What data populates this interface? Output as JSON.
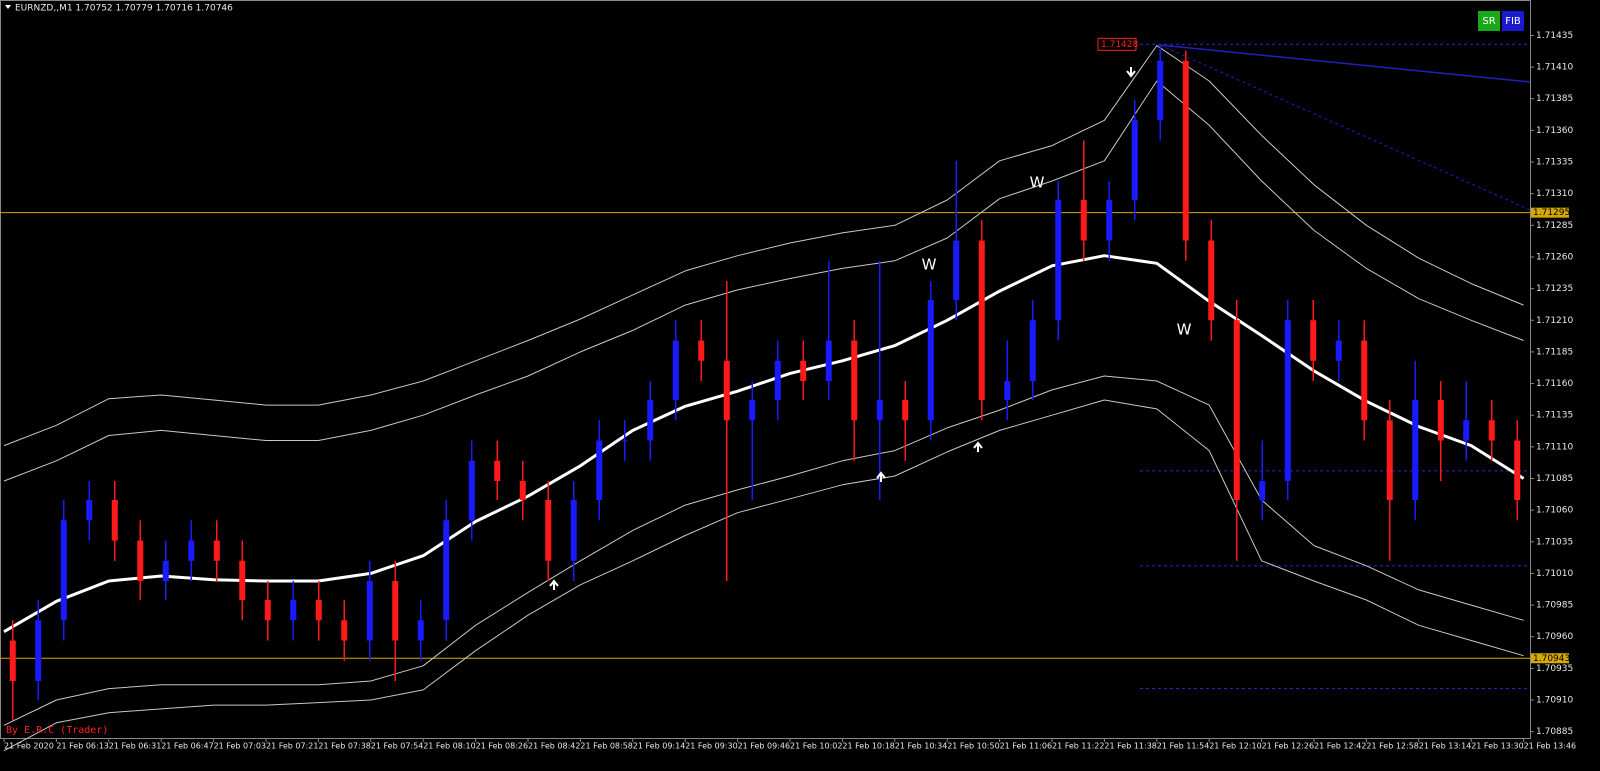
{
  "chart_data": {
    "type": "candlestick",
    "title": "EURNZD,,M1 1.70752 1.70779 1.70716 1.70746",
    "watermark": "By E.R.C (Trader)",
    "buttons": [
      "SR",
      "FIB"
    ],
    "annotations": [
      "W",
      "W",
      "W"
    ],
    "up_color": "#1a1aff",
    "down_color": "#ff1a1a",
    "ylim": [
      1.7088,
      1.71463
    ],
    "yticks": [
      1.71435,
      {
        "value": 1.7141,
        "label": "1.71410"
      },
      1.71385,
      {
        "value": 1.7136,
        "label": "1.71360"
      },
      1.71335,
      {
        "value": 1.7131,
        "label": "1.71310"
      },
      1.71285,
      {
        "value": 1.7126,
        "label": "1.71260"
      },
      1.71235,
      {
        "value": 1.7121,
        "label": "1.71210"
      },
      1.71185,
      {
        "value": 1.7116,
        "label": "1.71160"
      },
      1.71135,
      {
        "value": 1.7111,
        "label": "1.71110"
      },
      1.71085,
      {
        "value": 1.7106,
        "label": "1.71060"
      },
      1.71035,
      {
        "value": 1.7101,
        "label": "1.71010"
      },
      1.70985,
      {
        "value": 1.7096,
        "label": "1.70960"
      },
      1.70935,
      {
        "value": 1.7091,
        "label": "1.70910"
      },
      1.70885
    ],
    "categories": [
      "21 Feb 2020",
      "21 Feb 06:13",
      "21 Feb 06:31",
      "21 Feb 06:47",
      "21 Feb 07:03",
      "21 Feb 07:21",
      "21 Feb 07:38",
      "21 Feb 07:54",
      "21 Feb 08:10",
      "21 Feb 08:26",
      "21 Feb 08:42",
      "21 Feb 08:58",
      "21 Feb 09:14",
      "21 Feb 09:30",
      "21 Feb 09:46",
      "21 Feb 10:02",
      "21 Feb 10:18",
      "21 Feb 10:34",
      "21 Feb 10:50",
      "21 Feb 11:06",
      "21 Feb 11:22",
      "21 Feb 11:38",
      "21 Feb 11:54",
      "21 Feb 12:10",
      "21 Feb 12:26",
      "21 Feb 12:42",
      "21 Feb 12:58",
      "21 Feb 13:14",
      "21 Feb 13:30",
      "21 Feb 13:46"
    ],
    "open": [
      1.70957,
      1.70925,
      1.70973,
      1.71052,
      1.71068,
      1.71036,
      1.71004,
      1.7102,
      1.71036,
      1.7102,
      1.70989,
      1.70973,
      1.70989,
      1.70973,
      1.70957,
      1.71004,
      1.70957,
      1.70973,
      1.71052,
      1.71099,
      1.71083,
      1.71068,
      1.7102,
      1.71068,
      1.71115,
      1.71115,
      1.71147,
      1.71194,
      1.71178,
      1.71131,
      1.71147,
      1.71178,
      1.71162,
      1.71194,
      1.71131,
      1.71147,
      1.71131,
      1.71226,
      1.71273,
      1.71147,
      1.71162,
      1.7121,
      1.71305,
      1.71273,
      1.71305,
      1.71368,
      1.71415,
      1.71273,
      1.7121,
      1.71068,
      1.71083,
      1.7121,
      1.71178,
      1.71194,
      1.71131,
      1.71068,
      1.71147,
      1.71115,
      1.71131,
      1.71115
    ],
    "high": [
      1.70973,
      1.70989,
      1.71068,
      1.71083,
      1.71083,
      1.71052,
      1.71036,
      1.71052,
      1.71052,
      1.71036,
      1.71004,
      1.71004,
      1.71004,
      1.70989,
      1.7102,
      1.7102,
      1.70989,
      1.71068,
      1.71115,
      1.71115,
      1.71099,
      1.71083,
      1.71083,
      1.71131,
      1.71131,
      1.71162,
      1.7121,
      1.7121,
      1.71241,
      1.71162,
      1.71194,
      1.71194,
      1.71257,
      1.7121,
      1.71257,
      1.71162,
      1.71241,
      1.71336,
      1.71289,
      1.71194,
      1.71226,
      1.7132,
      1.71352,
      1.7132,
      1.71384,
      1.71428,
      1.71423,
      1.71289,
      1.71226,
      1.71115,
      1.71226,
      1.71226,
      1.7121,
      1.7121,
      1.71147,
      1.71178,
      1.71162,
      1.71162,
      1.71147,
      1.71131
    ],
    "low": [
      1.70894,
      1.7091,
      1.70957,
      1.71036,
      1.7102,
      1.70989,
      1.70989,
      1.71004,
      1.71004,
      1.70973,
      1.70957,
      1.70957,
      1.70957,
      1.70941,
      1.70941,
      1.70925,
      1.70941,
      1.70957,
      1.71036,
      1.71068,
      1.71052,
      1.71004,
      1.71004,
      1.71052,
      1.71099,
      1.71099,
      1.71131,
      1.71162,
      1.71004,
      1.71068,
      1.71131,
      1.71147,
      1.71147,
      1.71099,
      1.71068,
      1.71099,
      1.71115,
      1.7121,
      1.71131,
      1.71131,
      1.71147,
      1.71194,
      1.71257,
      1.71257,
      1.71289,
      1.71352,
      1.71257,
      1.71194,
      1.7102,
      1.71052,
      1.71068,
      1.71162,
      1.71162,
      1.71115,
      1.7102,
      1.71052,
      1.71083,
      1.71099,
      1.71099,
      1.71052
    ],
    "close": [
      1.70925,
      1.70973,
      1.71052,
      1.71068,
      1.71036,
      1.71004,
      1.7102,
      1.71036,
      1.7102,
      1.70989,
      1.70973,
      1.70989,
      1.70973,
      1.70957,
      1.71004,
      1.70957,
      1.70973,
      1.71052,
      1.71099,
      1.71083,
      1.71068,
      1.7102,
      1.71068,
      1.71115,
      1.71115,
      1.71147,
      1.71194,
      1.71178,
      1.71131,
      1.71147,
      1.71178,
      1.71162,
      1.71194,
      1.71131,
      1.71147,
      1.71131,
      1.71226,
      1.71273,
      1.71147,
      1.71162,
      1.7121,
      1.71305,
      1.71273,
      1.71305,
      1.71368,
      1.71415,
      1.71273,
      1.7121,
      1.71068,
      1.71083,
      1.7121,
      1.71178,
      1.71194,
      1.71131,
      1.71068,
      1.71147,
      1.71115,
      1.71131,
      1.71115,
      1.71068
    ],
    "bands": [
      {
        "color": "#ffffff",
        "width": 3,
        "values": [
          1.70964,
          1.70988,
          1.71004,
          1.71008,
          1.71005,
          1.71004,
          1.71004,
          1.7101,
          1.71024,
          1.71051,
          1.71071,
          1.71095,
          1.71123,
          1.71142,
          1.71154,
          1.71168,
          1.71178,
          1.7119,
          1.7121,
          1.71233,
          1.71253,
          1.71261,
          1.71255,
          1.71225,
          1.71198,
          1.7117,
          1.71146,
          1.71126,
          1.71111,
          1.71085
        ]
      },
      {
        "color": "#c8c8c8",
        "width": 1,
        "values": [
          1.71111,
          1.71127,
          1.71148,
          1.71151,
          1.71147,
          1.71143,
          1.71143,
          1.71151,
          1.71162,
          1.71178,
          1.71194,
          1.71211,
          1.7123,
          1.71249,
          1.71261,
          1.71271,
          1.71279,
          1.71285,
          1.71305,
          1.71336,
          1.71348,
          1.71368,
          1.71427,
          1.71399,
          1.71356,
          1.71317,
          1.71285,
          1.71259,
          1.71239,
          1.71222
        ]
      },
      {
        "color": "#c8c8c8",
        "width": 1,
        "values": [
          1.71083,
          1.71099,
          1.71119,
          1.71123,
          1.71119,
          1.71115,
          1.71115,
          1.71123,
          1.71135,
          1.71151,
          1.71166,
          1.71185,
          1.71202,
          1.71222,
          1.71234,
          1.71243,
          1.71251,
          1.71257,
          1.71275,
          1.71306,
          1.7132,
          1.71336,
          1.71399,
          1.71364,
          1.7132,
          1.71281,
          1.71251,
          1.71227,
          1.7121,
          1.71194
        ]
      },
      {
        "color": "#c8c8c8",
        "width": 1,
        "values": [
          1.7089,
          1.7091,
          1.70919,
          1.70922,
          1.70922,
          1.70922,
          1.70922,
          1.70925,
          1.70937,
          1.70969,
          1.70995,
          1.7102,
          1.71044,
          1.71064,
          1.71076,
          1.71087,
          1.71099,
          1.71107,
          1.71125,
          1.71139,
          1.71155,
          1.71166,
          1.71162,
          1.71143,
          1.71068,
          1.71032,
          1.71016,
          1.70997,
          1.70985,
          1.70973
        ]
      },
      {
        "color": "#c8c8c8",
        "width": 1,
        "values": [
          1.7087,
          1.70892,
          1.709,
          1.70903,
          1.70906,
          1.70906,
          1.70908,
          1.7091,
          1.70918,
          1.70949,
          1.70977,
          1.71001,
          1.7102,
          1.7104,
          1.71058,
          1.71069,
          1.7108,
          1.71087,
          1.71106,
          1.71123,
          1.71135,
          1.71147,
          1.7114,
          1.71107,
          1.7102,
          1.71004,
          1.70989,
          1.70969,
          1.70957,
          1.70945
        ]
      }
    ],
    "hlines": [
      {
        "value": 1.71295,
        "color": "#d4a800"
      },
      {
        "value": 1.70943,
        "color": "#d4a800"
      }
    ],
    "fib_levels": [
      1.71428,
      1.71091,
      1.71016,
      1.70919
    ],
    "fib_color": "#2a2ad0",
    "grid": false
  }
}
